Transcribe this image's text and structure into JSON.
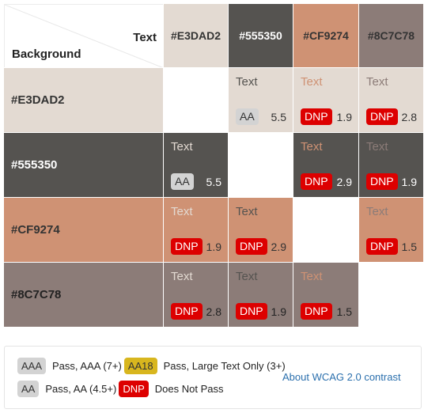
{
  "corner": {
    "text_label": "Text",
    "background_label": "Background"
  },
  "colors": [
    "#E3DAD2",
    "#555350",
    "#CF9274",
    "#8C7C78"
  ],
  "column_headers": [
    {
      "label": "#E3DAD2",
      "bg": "#E3DAD2",
      "fg": "#333333"
    },
    {
      "label": "#555350",
      "bg": "#555350",
      "fg": "#ffffff"
    },
    {
      "label": "#CF9274",
      "bg": "#CF9274",
      "fg": "#333333"
    },
    {
      "label": "#8C7C78",
      "bg": "#8C7C78",
      "fg": "#333333"
    }
  ],
  "rows": [
    {
      "label": "#E3DAD2",
      "bg": "#E3DAD2",
      "fg": "#333333",
      "cells": [
        null,
        {
          "sample": "Text",
          "text_color": "#555350",
          "badge": "AA",
          "ratio": "5.5",
          "ratio_color": "#333333"
        },
        {
          "sample": "Text",
          "text_color": "#CF9274",
          "badge": "DNP",
          "ratio": "1.9",
          "ratio_color": "#333333"
        },
        {
          "sample": "Text",
          "text_color": "#8C7C78",
          "badge": "DNP",
          "ratio": "2.8",
          "ratio_color": "#333333"
        }
      ]
    },
    {
      "label": "#555350",
      "bg": "#555350",
      "fg": "#ffffff",
      "cells": [
        {
          "sample": "Text",
          "text_color": "#E3DAD2",
          "badge": "AA",
          "ratio": "5.5",
          "ratio_color": "#ffffff"
        },
        null,
        {
          "sample": "Text",
          "text_color": "#CF9274",
          "badge": "DNP",
          "ratio": "2.9",
          "ratio_color": "#ffffff"
        },
        {
          "sample": "Text",
          "text_color": "#8C7C78",
          "badge": "DNP",
          "ratio": "1.9",
          "ratio_color": "#ffffff"
        }
      ]
    },
    {
      "label": "#CF9274",
      "bg": "#CF9274",
      "fg": "#333333",
      "cells": [
        {
          "sample": "Text",
          "text_color": "#E3DAD2",
          "badge": "DNP",
          "ratio": "1.9",
          "ratio_color": "#333333"
        },
        {
          "sample": "Text",
          "text_color": "#555350",
          "badge": "DNP",
          "ratio": "2.9",
          "ratio_color": "#333333"
        },
        null,
        {
          "sample": "Text",
          "text_color": "#8C7C78",
          "badge": "DNP",
          "ratio": "1.5",
          "ratio_color": "#333333"
        }
      ]
    },
    {
      "label": "#8C7C78",
      "bg": "#8C7C78",
      "fg": "#222222",
      "cells": [
        {
          "sample": "Text",
          "text_color": "#E3DAD2",
          "badge": "DNP",
          "ratio": "2.8",
          "ratio_color": "#222222"
        },
        {
          "sample": "Text",
          "text_color": "#555350",
          "badge": "DNP",
          "ratio": "1.9",
          "ratio_color": "#222222"
        },
        {
          "sample": "Text",
          "text_color": "#CF9274",
          "badge": "DNP",
          "ratio": "1.5",
          "ratio_color": "#222222"
        },
        null
      ]
    }
  ],
  "legend": {
    "aaa_badge": "AAA",
    "aaa_desc": "Pass, AAA (7+)",
    "aa18_badge": "AA18",
    "aa18_desc": "Pass, Large Text Only (3+)",
    "aa_badge": "AA",
    "aa_desc": "Pass, AA (4.5+)",
    "dnp_badge": "DNP",
    "dnp_desc": "Does Not Pass",
    "link_text": "About WCAG 2.0 contrast"
  }
}
